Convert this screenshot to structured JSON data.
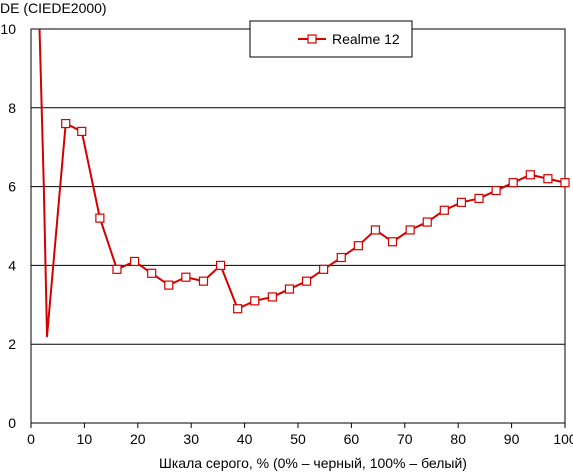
{
  "chart_data": {
    "type": "line",
    "title": "",
    "ylabel": "DE (CIEDE2000)",
    "xlabel": "Шкала серого, % (0% – черный, 100% – белый)",
    "xlim": [
      0,
      100
    ],
    "ylim": [
      0,
      10
    ],
    "xticks": [
      "0",
      "10",
      "20",
      "30",
      "40",
      "50",
      "60",
      "70",
      "80",
      "90",
      "100"
    ],
    "yticks": [
      "0",
      "2",
      "4",
      "6",
      "8",
      "10"
    ],
    "grid": "horizontal",
    "legend_position": "top-center",
    "series": [
      {
        "name": "Realme 12",
        "color": "#d40000",
        "marker": "hollow-square",
        "clip_start": {
          "x": 1.6,
          "y": 10.0
        },
        "points": [
          {
            "x": 2.0,
            "y": 8.0
          },
          {
            "x": 2.4,
            "y": 6.0
          },
          {
            "x": 3.0,
            "y": 2.2
          },
          {
            "x": 6.5,
            "y": 7.6
          },
          {
            "x": 9.5,
            "y": 7.4
          },
          {
            "x": 12.9,
            "y": 5.2
          },
          {
            "x": 16.1,
            "y": 3.9
          },
          {
            "x": 19.4,
            "y": 4.1
          },
          {
            "x": 22.6,
            "y": 3.8
          },
          {
            "x": 25.8,
            "y": 3.5
          },
          {
            "x": 29.0,
            "y": 3.7
          },
          {
            "x": 32.3,
            "y": 3.6
          },
          {
            "x": 35.5,
            "y": 4.0
          },
          {
            "x": 38.7,
            "y": 2.9
          },
          {
            "x": 41.9,
            "y": 3.1
          },
          {
            "x": 45.2,
            "y": 3.2
          },
          {
            "x": 48.4,
            "y": 3.4
          },
          {
            "x": 51.6,
            "y": 3.6
          },
          {
            "x": 54.8,
            "y": 3.9
          },
          {
            "x": 58.1,
            "y": 4.2
          },
          {
            "x": 61.3,
            "y": 4.5
          },
          {
            "x": 64.5,
            "y": 4.9
          },
          {
            "x": 67.7,
            "y": 4.6
          },
          {
            "x": 71.0,
            "y": 4.9
          },
          {
            "x": 74.2,
            "y": 5.1
          },
          {
            "x": 77.4,
            "y": 5.4
          },
          {
            "x": 80.6,
            "y": 5.6
          },
          {
            "x": 83.9,
            "y": 5.7
          },
          {
            "x": 87.1,
            "y": 5.9
          },
          {
            "x": 90.3,
            "y": 6.1
          },
          {
            "x": 93.5,
            "y": 6.3
          },
          {
            "x": 96.8,
            "y": 6.2
          },
          {
            "x": 100.0,
            "y": 6.1
          }
        ],
        "markers_start_index": 3
      }
    ]
  }
}
